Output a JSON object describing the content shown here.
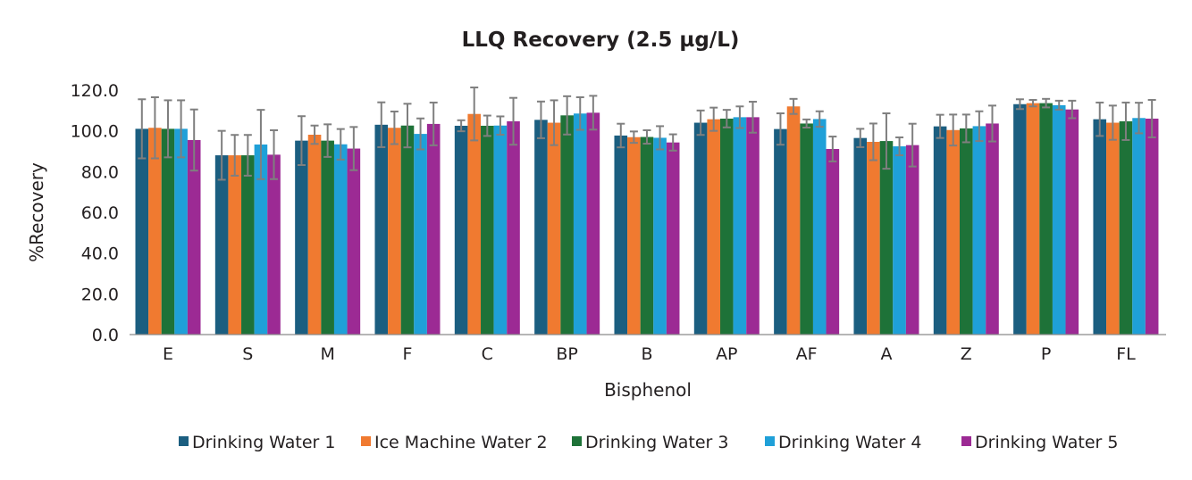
{
  "chart_data": {
    "type": "bar",
    "title": "LLQ Recovery (2.5 µg/L)",
    "xlabel": "Bisphenol",
    "ylabel": "%Recovery",
    "ylim": [
      0,
      120
    ],
    "yticks": [
      "0.0",
      "20.0",
      "40.0",
      "60.0",
      "80.0",
      "100.0",
      "120.0"
    ],
    "grid": false,
    "legend_position": "bottom",
    "categories": [
      "E",
      "S",
      "M",
      "F",
      "C",
      "BP",
      "B",
      "AP",
      "AF",
      "A",
      "Z",
      "P",
      "FL"
    ],
    "series": [
      {
        "name": "Drinking Water 1",
        "color": "#1B5E80",
        "values": [
          101.0,
          88.0,
          95.2,
          103.0,
          102.5,
          105.4,
          97.7,
          104.0,
          100.9,
          96.5,
          102.2,
          113.1,
          105.7
        ],
        "errors": [
          14.5,
          12.0,
          12.0,
          11.0,
          2.7,
          9.0,
          5.8,
          6.0,
          7.7,
          4.5,
          5.7,
          2.4,
          8.2
        ]
      },
      {
        "name": "Ice Machine Water 2",
        "color": "#F07A30",
        "values": [
          101.5,
          88.0,
          98.1,
          101.5,
          108.3,
          104.0,
          96.9,
          105.7,
          112.0,
          94.6,
          100.4,
          113.6,
          104.0
        ],
        "errors": [
          15.0,
          10.0,
          4.5,
          8.0,
          13.0,
          11.0,
          2.8,
          5.7,
          3.7,
          9.0,
          7.6,
          1.6,
          8.4
        ]
      },
      {
        "name": "Drinking Water 3",
        "color": "#1E7238",
        "values": [
          101.0,
          88.0,
          95.2,
          102.6,
          102.5,
          107.6,
          97.0,
          106.0,
          103.6,
          95.0,
          101.2,
          113.6,
          104.7
        ],
        "errors": [
          14.0,
          10.0,
          8.0,
          10.7,
          5.0,
          9.4,
          3.3,
          4.3,
          2.0,
          13.6,
          6.8,
          2.1,
          9.2
        ]
      },
      {
        "name": "Drinking Water 4",
        "color": "#1FA0D8",
        "values": [
          101.0,
          93.3,
          93.4,
          98.5,
          102.6,
          108.5,
          96.6,
          106.7,
          105.8,
          92.4,
          102.3,
          112.6,
          106.3
        ],
        "errors": [
          14.0,
          17.0,
          7.5,
          7.6,
          4.5,
          8.0,
          5.7,
          5.3,
          3.8,
          4.4,
          7.3,
          2.2,
          7.5
        ]
      },
      {
        "name": "Drinking Water 5",
        "color": "#9C2A94",
        "values": [
          95.5,
          88.3,
          91.3,
          103.4,
          104.7,
          108.9,
          94.3,
          106.7,
          91.1,
          93.0,
          103.6,
          110.5,
          106.0
        ],
        "errors": [
          15.0,
          12.0,
          10.6,
          10.5,
          11.5,
          8.3,
          4.0,
          7.6,
          6.1,
          10.5,
          8.8,
          4.3,
          9.2
        ]
      }
    ],
    "error_bar_color": "#7f7f7f"
  }
}
